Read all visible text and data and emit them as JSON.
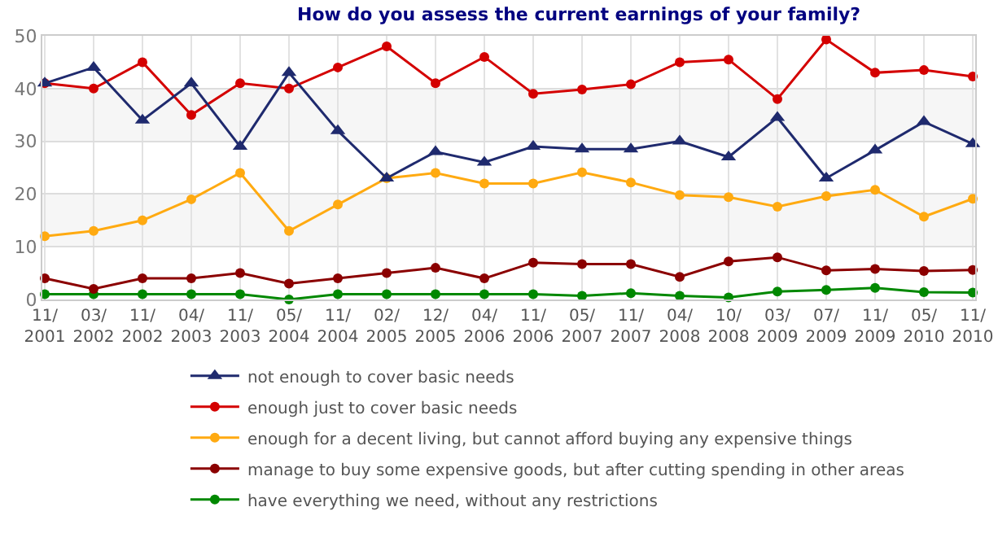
{
  "chart_data": {
    "type": "line",
    "title": "How do you assess the current earnings of your family?",
    "categories": [
      "11/\n2001",
      "03/\n2002",
      "11/\n2002",
      "04/\n2003",
      "11/\n2003",
      "05/\n2004",
      "11/\n2004",
      "02/\n2005",
      "12/\n2005",
      "04/\n2006",
      "11/\n2006",
      "05/\n2007",
      "11/\n2007",
      "04/\n2008",
      "10/\n2008",
      "03/\n2009",
      "07/\n2009",
      "11/\n2009",
      "05/\n2010",
      "11/\n2010"
    ],
    "series": [
      {
        "name": "not enough to cover basic needs",
        "color": "#1f2a6e",
        "marker": "triangle",
        "values": [
          41,
          44,
          34,
          41,
          29,
          43,
          32,
          23,
          28,
          26,
          29,
          28.5,
          28.5,
          30,
          27,
          34.5,
          23,
          28.3,
          33.7,
          29.5
        ]
      },
      {
        "name": "enough just to cover basic needs",
        "color": "#d40000",
        "marker": "circle",
        "values": [
          41,
          40,
          45,
          35,
          41,
          40,
          44,
          48,
          41,
          46,
          39,
          39.8,
          40.8,
          45,
          45.5,
          38,
          49.3,
          43,
          43.5,
          42.3
        ]
      },
      {
        "name": "enough for a decent living, but cannot afford buying any expensive things",
        "color": "#ffaa11",
        "marker": "circle",
        "values": [
          12,
          13,
          15,
          19,
          24,
          13,
          18,
          23,
          24,
          22,
          22,
          24.1,
          22.2,
          19.8,
          19.4,
          17.6,
          19.6,
          20.8,
          15.7,
          19.1
        ]
      },
      {
        "name": "manage to buy some expensive goods, but after cutting spending in other areas",
        "color": "#8b0000",
        "marker": "circle",
        "values": [
          4,
          2,
          4,
          4,
          5,
          3,
          4,
          5,
          6,
          4,
          7,
          6.7,
          6.7,
          4.3,
          7.2,
          8,
          5.5,
          5.8,
          5.4,
          5.6
        ]
      },
      {
        "name": "have everything we need, without any restrictions",
        "color": "#008800",
        "marker": "circle",
        "values": [
          1,
          1,
          1,
          1,
          1,
          0,
          1,
          1,
          1,
          1,
          1,
          0.7,
          1.2,
          0.7,
          0.4,
          1.5,
          1.8,
          2.2,
          1.4,
          1.3
        ]
      }
    ],
    "ylim": [
      0,
      50
    ],
    "yticks": [
      0,
      10,
      20,
      30,
      40,
      50
    ],
    "grid": true,
    "legend": "bottom",
    "line_style": "solid",
    "bands": [
      {
        "axis": "y",
        "from": 10,
        "to": 20,
        "color": "#f6f6f6"
      },
      {
        "axis": "y",
        "from": 30,
        "to": 40,
        "color": "#f6f6f6"
      }
    ]
  }
}
